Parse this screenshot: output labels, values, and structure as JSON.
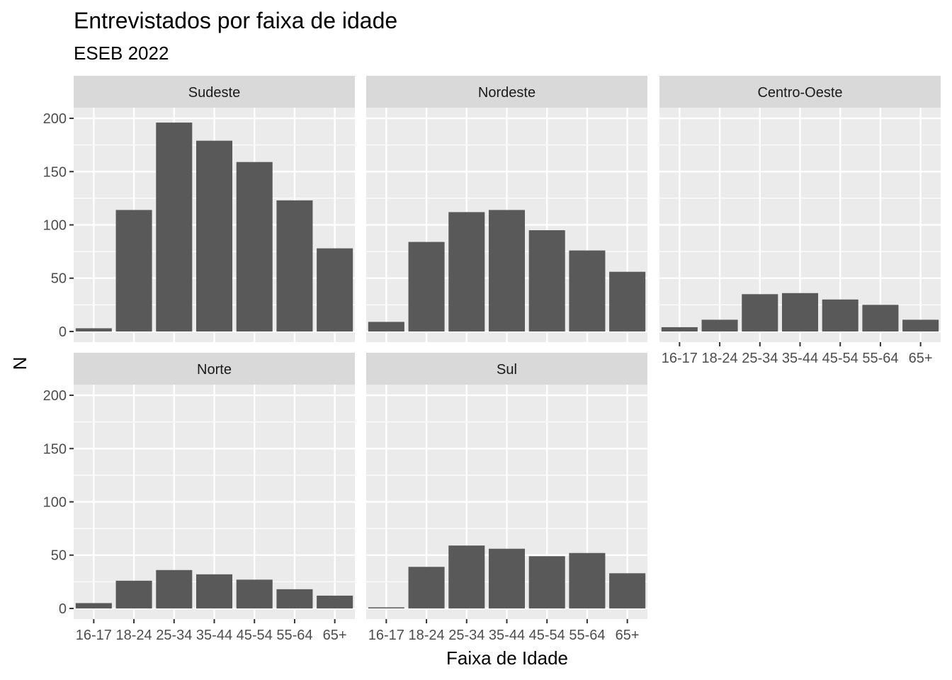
{
  "chart_data": {
    "type": "bar",
    "title": "Entrevistados por faixa de idade",
    "subtitle": "ESEB 2022",
    "xlabel": "Faixa de Idade",
    "ylabel": "N",
    "categories": [
      "16-17",
      "18-24",
      "25-34",
      "35-44",
      "45-54",
      "55-64",
      "65+"
    ],
    "ylim": [
      -10,
      210
    ],
    "yticks": [
      0,
      50,
      100,
      150,
      200
    ],
    "grid": true,
    "bar_color": "#595959",
    "panel_background": "#ebebeb",
    "strip_background": "#d9d9d9",
    "facets": [
      {
        "name": "Sudeste",
        "values": [
          3,
          114,
          196,
          179,
          159,
          123,
          78
        ]
      },
      {
        "name": "Nordeste",
        "values": [
          9,
          84,
          112,
          114,
          95,
          76,
          56
        ]
      },
      {
        "name": "Centro-Oeste",
        "values": [
          4,
          11,
          35,
          36,
          30,
          25,
          11
        ]
      },
      {
        "name": "Norte",
        "values": [
          5,
          26,
          36,
          32,
          27,
          18,
          12
        ]
      },
      {
        "name": "Sul",
        "values": [
          1,
          39,
          59,
          56,
          49,
          52,
          33
        ]
      }
    ]
  }
}
